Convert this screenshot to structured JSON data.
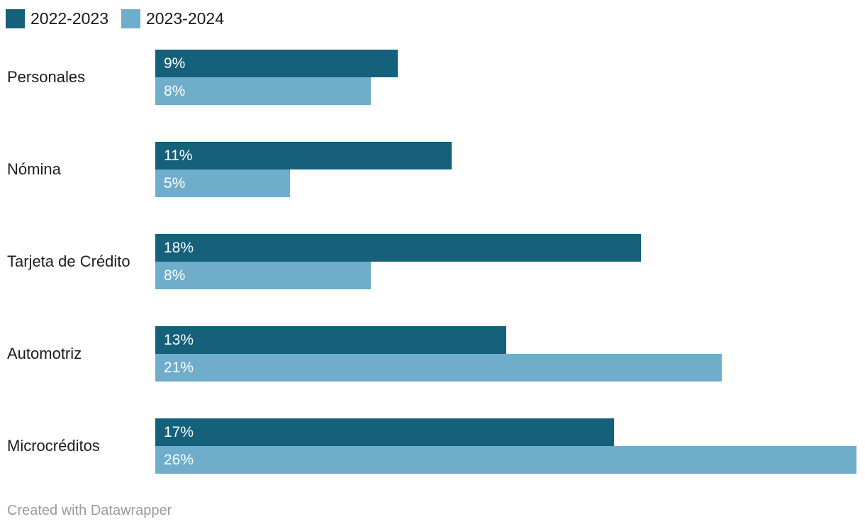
{
  "chart_data": {
    "type": "bar",
    "orientation": "horizontal",
    "title": "",
    "xlabel": "",
    "ylabel": "",
    "xlim": [
      0,
      26
    ],
    "grid": false,
    "legend_position": "top-left",
    "value_suffix": "%",
    "categories": [
      "Personales",
      "Nómina",
      "Tarjeta de Crédito",
      "Automotriz",
      "Microcréditos"
    ],
    "series": [
      {
        "name": "2022-2023",
        "color": "#15607b",
        "values": [
          9,
          11,
          18,
          13,
          17
        ]
      },
      {
        "name": "2023-2024",
        "color": "#6fadca",
        "values": [
          8,
          5,
          8,
          21,
          26
        ]
      }
    ]
  },
  "footer": {
    "attribution": "Created with Datawrapper"
  }
}
